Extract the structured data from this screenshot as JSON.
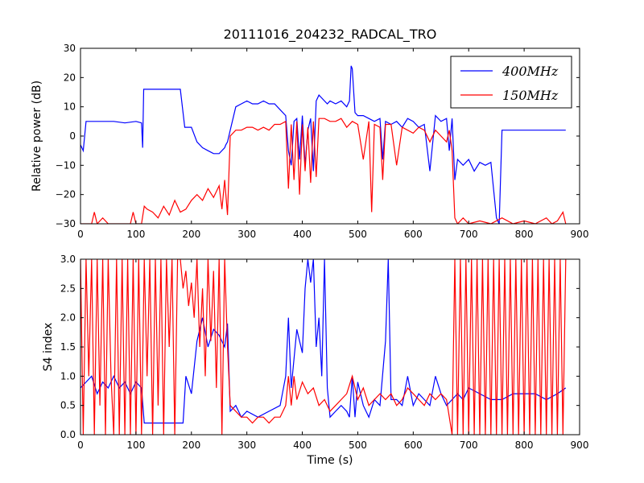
{
  "title": "20111016_204232_RADCAL_TRO",
  "colors": {
    "series_400": "#0000ff",
    "series_150": "#ff0000"
  },
  "chart_data": [
    {
      "type": "line",
      "ylabel": "Relative power (dB)",
      "xlabel": "",
      "xlim": [
        0,
        900
      ],
      "ylim": [
        -30,
        30
      ],
      "xticks": [
        "0",
        "100",
        "200",
        "300",
        "400",
        "500",
        "600",
        "700",
        "800",
        "900"
      ],
      "yticks": [
        "−30",
        "−20",
        "−10",
        "0",
        "10",
        "20",
        "30"
      ],
      "grid": false,
      "legend": "top-right",
      "series": [
        {
          "name": "400MHz",
          "color": "#0000ff",
          "x": [
            0,
            5,
            10,
            20,
            40,
            60,
            80,
            100,
            110,
            112,
            114,
            120,
            140,
            160,
            180,
            188,
            190,
            200,
            210,
            220,
            230,
            240,
            250,
            260,
            262,
            265,
            270,
            280,
            290,
            300,
            310,
            320,
            330,
            340,
            350,
            360,
            370,
            375,
            380,
            385,
            390,
            395,
            400,
            405,
            410,
            415,
            420,
            425,
            430,
            440,
            445,
            450,
            460,
            470,
            480,
            485,
            488,
            490,
            495,
            500,
            510,
            520,
            530,
            540,
            545,
            550,
            560,
            570,
            580,
            590,
            600,
            610,
            620,
            630,
            640,
            650,
            660,
            665,
            670,
            675,
            680,
            690,
            700,
            710,
            720,
            730,
            740,
            750,
            755,
            760,
            770,
            780,
            790,
            800,
            810,
            820,
            830,
            840,
            850,
            860,
            870,
            875
          ],
          "y": [
            -3,
            -5,
            5,
            5,
            5,
            5,
            4.5,
            5,
            4.5,
            -4,
            16,
            16,
            16,
            16,
            16,
            3,
            3,
            3,
            -2,
            -4,
            -5,
            -6,
            -6,
            -4,
            -3,
            -2,
            2,
            10,
            11,
            12,
            11,
            11,
            12,
            11,
            11,
            9,
            7,
            -5,
            -10,
            5,
            6,
            -8,
            7,
            -10,
            2,
            6,
            -12,
            12,
            14,
            12,
            11,
            12,
            11,
            12,
            10,
            12,
            24,
            23,
            8,
            7,
            7,
            6,
            5,
            6,
            -8,
            5,
            4,
            5,
            3,
            6,
            5,
            3,
            4,
            -12,
            7,
            5,
            6,
            -5,
            6,
            -15,
            -8,
            -10,
            -8,
            -12,
            -9,
            -10,
            -9,
            -28,
            -30,
            2,
            2,
            2,
            2,
            2,
            2,
            2,
            2,
            2,
            2,
            2,
            2,
            2
          ]
        },
        {
          "name": "150MHz",
          "color": "#ff0000",
          "x": [
            0,
            10,
            20,
            25,
            30,
            40,
            50,
            60,
            70,
            80,
            90,
            95,
            100,
            110,
            115,
            120,
            130,
            140,
            150,
            160,
            170,
            180,
            190,
            200,
            210,
            220,
            230,
            240,
            250,
            255,
            260,
            265,
            270,
            280,
            290,
            300,
            310,
            320,
            330,
            340,
            350,
            360,
            370,
            375,
            380,
            385,
            390,
            395,
            400,
            405,
            410,
            415,
            420,
            425,
            430,
            440,
            450,
            460,
            470,
            480,
            490,
            500,
            510,
            520,
            525,
            530,
            540,
            545,
            550,
            560,
            570,
            580,
            590,
            600,
            610,
            620,
            630,
            640,
            650,
            660,
            665,
            670,
            675,
            680,
            690,
            700,
            720,
            740,
            760,
            780,
            800,
            820,
            840,
            850,
            860,
            870,
            875
          ],
          "y": [
            -30,
            -30,
            -30,
            -26,
            -30,
            -28,
            -30,
            -30,
            -30,
            -30,
            -30,
            -26,
            -30,
            -30,
            -24,
            -25,
            -26,
            -28,
            -24,
            -27,
            -22,
            -26,
            -25,
            -22,
            -20,
            -22,
            -18,
            -21,
            -17,
            -25,
            -15,
            -27,
            0,
            2,
            2,
            3,
            3,
            2,
            3,
            2,
            4,
            4,
            5,
            -18,
            4,
            -15,
            5,
            -20,
            4,
            -12,
            3,
            -16,
            5,
            -14,
            6,
            6,
            5,
            5,
            6,
            3,
            5,
            4,
            -8,
            5,
            -26,
            4,
            3,
            -15,
            4,
            4,
            -10,
            3,
            2,
            1,
            3,
            2,
            -2,
            2,
            0,
            -2,
            2,
            -5,
            -28,
            -30,
            -28,
            -30,
            -29,
            -30,
            -28,
            -30,
            -29,
            -30,
            -28,
            -30,
            -29,
            -26,
            -30
          ]
        }
      ]
    },
    {
      "type": "line",
      "ylabel": "S4 index",
      "xlabel": "Time (s)",
      "xlim": [
        0,
        900
      ],
      "ylim": [
        0,
        3
      ],
      "xticks": [
        "0",
        "100",
        "200",
        "300",
        "400",
        "500",
        "600",
        "700",
        "800",
        "900"
      ],
      "yticks": [
        "0.0",
        "0.5",
        "1.0",
        "1.5",
        "2.0",
        "2.5",
        "3.0"
      ],
      "grid": false,
      "series": [
        {
          "name": "400MHz",
          "color": "#0000ff",
          "x": [
            0,
            10,
            20,
            30,
            40,
            50,
            60,
            70,
            80,
            90,
            100,
            110,
            115,
            120,
            140,
            160,
            180,
            185,
            190,
            200,
            210,
            220,
            230,
            240,
            250,
            260,
            265,
            270,
            280,
            290,
            300,
            320,
            340,
            360,
            370,
            375,
            380,
            390,
            400,
            405,
            410,
            415,
            420,
            425,
            430,
            435,
            440,
            445,
            450,
            460,
            470,
            480,
            485,
            490,
            495,
            500,
            510,
            520,
            530,
            540,
            550,
            555,
            560,
            570,
            580,
            590,
            600,
            610,
            620,
            630,
            640,
            650,
            660,
            670,
            680,
            690,
            700,
            720,
            740,
            760,
            780,
            800,
            820,
            840,
            860,
            875
          ],
          "y": [
            0.8,
            0.9,
            1.0,
            0.7,
            0.9,
            0.8,
            1.0,
            0.8,
            0.9,
            0.7,
            0.9,
            0.8,
            0.2,
            0.2,
            0.2,
            0.2,
            0.2,
            0.2,
            1.0,
            0.7,
            1.6,
            2.0,
            1.5,
            1.8,
            1.7,
            1.5,
            1.9,
            0.4,
            0.5,
            0.3,
            0.4,
            0.3,
            0.4,
            0.5,
            1.0,
            2.0,
            0.8,
            1.8,
            1.4,
            2.5,
            3.0,
            2.6,
            3.0,
            1.5,
            2.0,
            1.0,
            3.0,
            0.8,
            0.3,
            0.4,
            0.5,
            0.4,
            0.3,
            1.0,
            0.3,
            0.9,
            0.5,
            0.3,
            0.6,
            0.5,
            1.6,
            3.0,
            0.6,
            0.6,
            0.5,
            1.0,
            0.5,
            0.7,
            0.6,
            0.5,
            1.0,
            0.7,
            0.5,
            0.6,
            0.7,
            0.6,
            0.8,
            0.7,
            0.6,
            0.6,
            0.7,
            0.7,
            0.7,
            0.6,
            0.7,
            0.8
          ]
        },
        {
          "name": "150MHz",
          "color": "#ff0000",
          "x": [
            0,
            5,
            10,
            15,
            20,
            25,
            30,
            35,
            40,
            45,
            50,
            55,
            60,
            65,
            70,
            75,
            80,
            85,
            90,
            95,
            100,
            105,
            110,
            115,
            120,
            125,
            130,
            135,
            140,
            145,
            150,
            155,
            160,
            165,
            170,
            175,
            180,
            185,
            190,
            195,
            200,
            205,
            210,
            215,
            220,
            225,
            230,
            235,
            240,
            245,
            250,
            255,
            260,
            265,
            270,
            280,
            290,
            300,
            310,
            320,
            330,
            340,
            350,
            360,
            370,
            375,
            380,
            385,
            390,
            400,
            410,
            420,
            430,
            440,
            450,
            460,
            470,
            480,
            490,
            500,
            510,
            520,
            530,
            540,
            550,
            560,
            570,
            580,
            590,
            600,
            610,
            620,
            630,
            640,
            650,
            660,
            670,
            675,
            680,
            685,
            690,
            695,
            700,
            705,
            710,
            715,
            720,
            725,
            730,
            735,
            740,
            745,
            750,
            755,
            760,
            765,
            770,
            775,
            780,
            785,
            790,
            795,
            800,
            805,
            810,
            815,
            820,
            825,
            830,
            835,
            840,
            845,
            850,
            855,
            860,
            865,
            870,
            875
          ],
          "y": [
            3.0,
            0.0,
            3.0,
            1.0,
            3.0,
            0.0,
            3.0,
            0.5,
            3.0,
            0.0,
            3.0,
            1.0,
            0.0,
            3.0,
            0.0,
            3.0,
            0.0,
            3.0,
            0.0,
            3.0,
            0.0,
            3.0,
            0.0,
            3.0,
            1.0,
            3.0,
            0.0,
            3.0,
            0.5,
            3.0,
            0.0,
            3.0,
            1.5,
            3.0,
            0.0,
            3.0,
            3.0,
            2.5,
            2.8,
            2.2,
            2.6,
            2.0,
            3.0,
            1.5,
            2.5,
            1.0,
            3.0,
            1.6,
            2.8,
            0.8,
            3.0,
            0.0,
            3.0,
            1.5,
            0.5,
            0.4,
            0.3,
            0.3,
            0.2,
            0.3,
            0.3,
            0.2,
            0.3,
            0.3,
            0.5,
            1.0,
            0.5,
            1.0,
            0.6,
            0.9,
            0.7,
            0.8,
            0.5,
            0.6,
            0.4,
            0.5,
            0.6,
            0.7,
            1.0,
            0.6,
            0.8,
            0.5,
            0.6,
            0.7,
            0.6,
            0.7,
            0.5,
            0.6,
            0.8,
            0.7,
            0.6,
            0.5,
            0.7,
            0.6,
            0.7,
            0.6,
            0.0,
            3.0,
            0.0,
            3.0,
            0.0,
            3.0,
            0.0,
            3.0,
            0.0,
            3.0,
            0.0,
            3.0,
            0.0,
            3.0,
            0.0,
            3.0,
            0.0,
            3.0,
            0.0,
            3.0,
            0.0,
            3.0,
            0.0,
            3.0,
            0.0,
            3.0,
            0.0,
            3.0,
            0.0,
            3.0,
            0.0,
            3.0,
            0.0,
            3.0,
            0.0,
            3.0,
            0.0,
            3.0,
            0.0,
            3.0,
            0.0,
            3.0
          ]
        }
      ]
    }
  ]
}
